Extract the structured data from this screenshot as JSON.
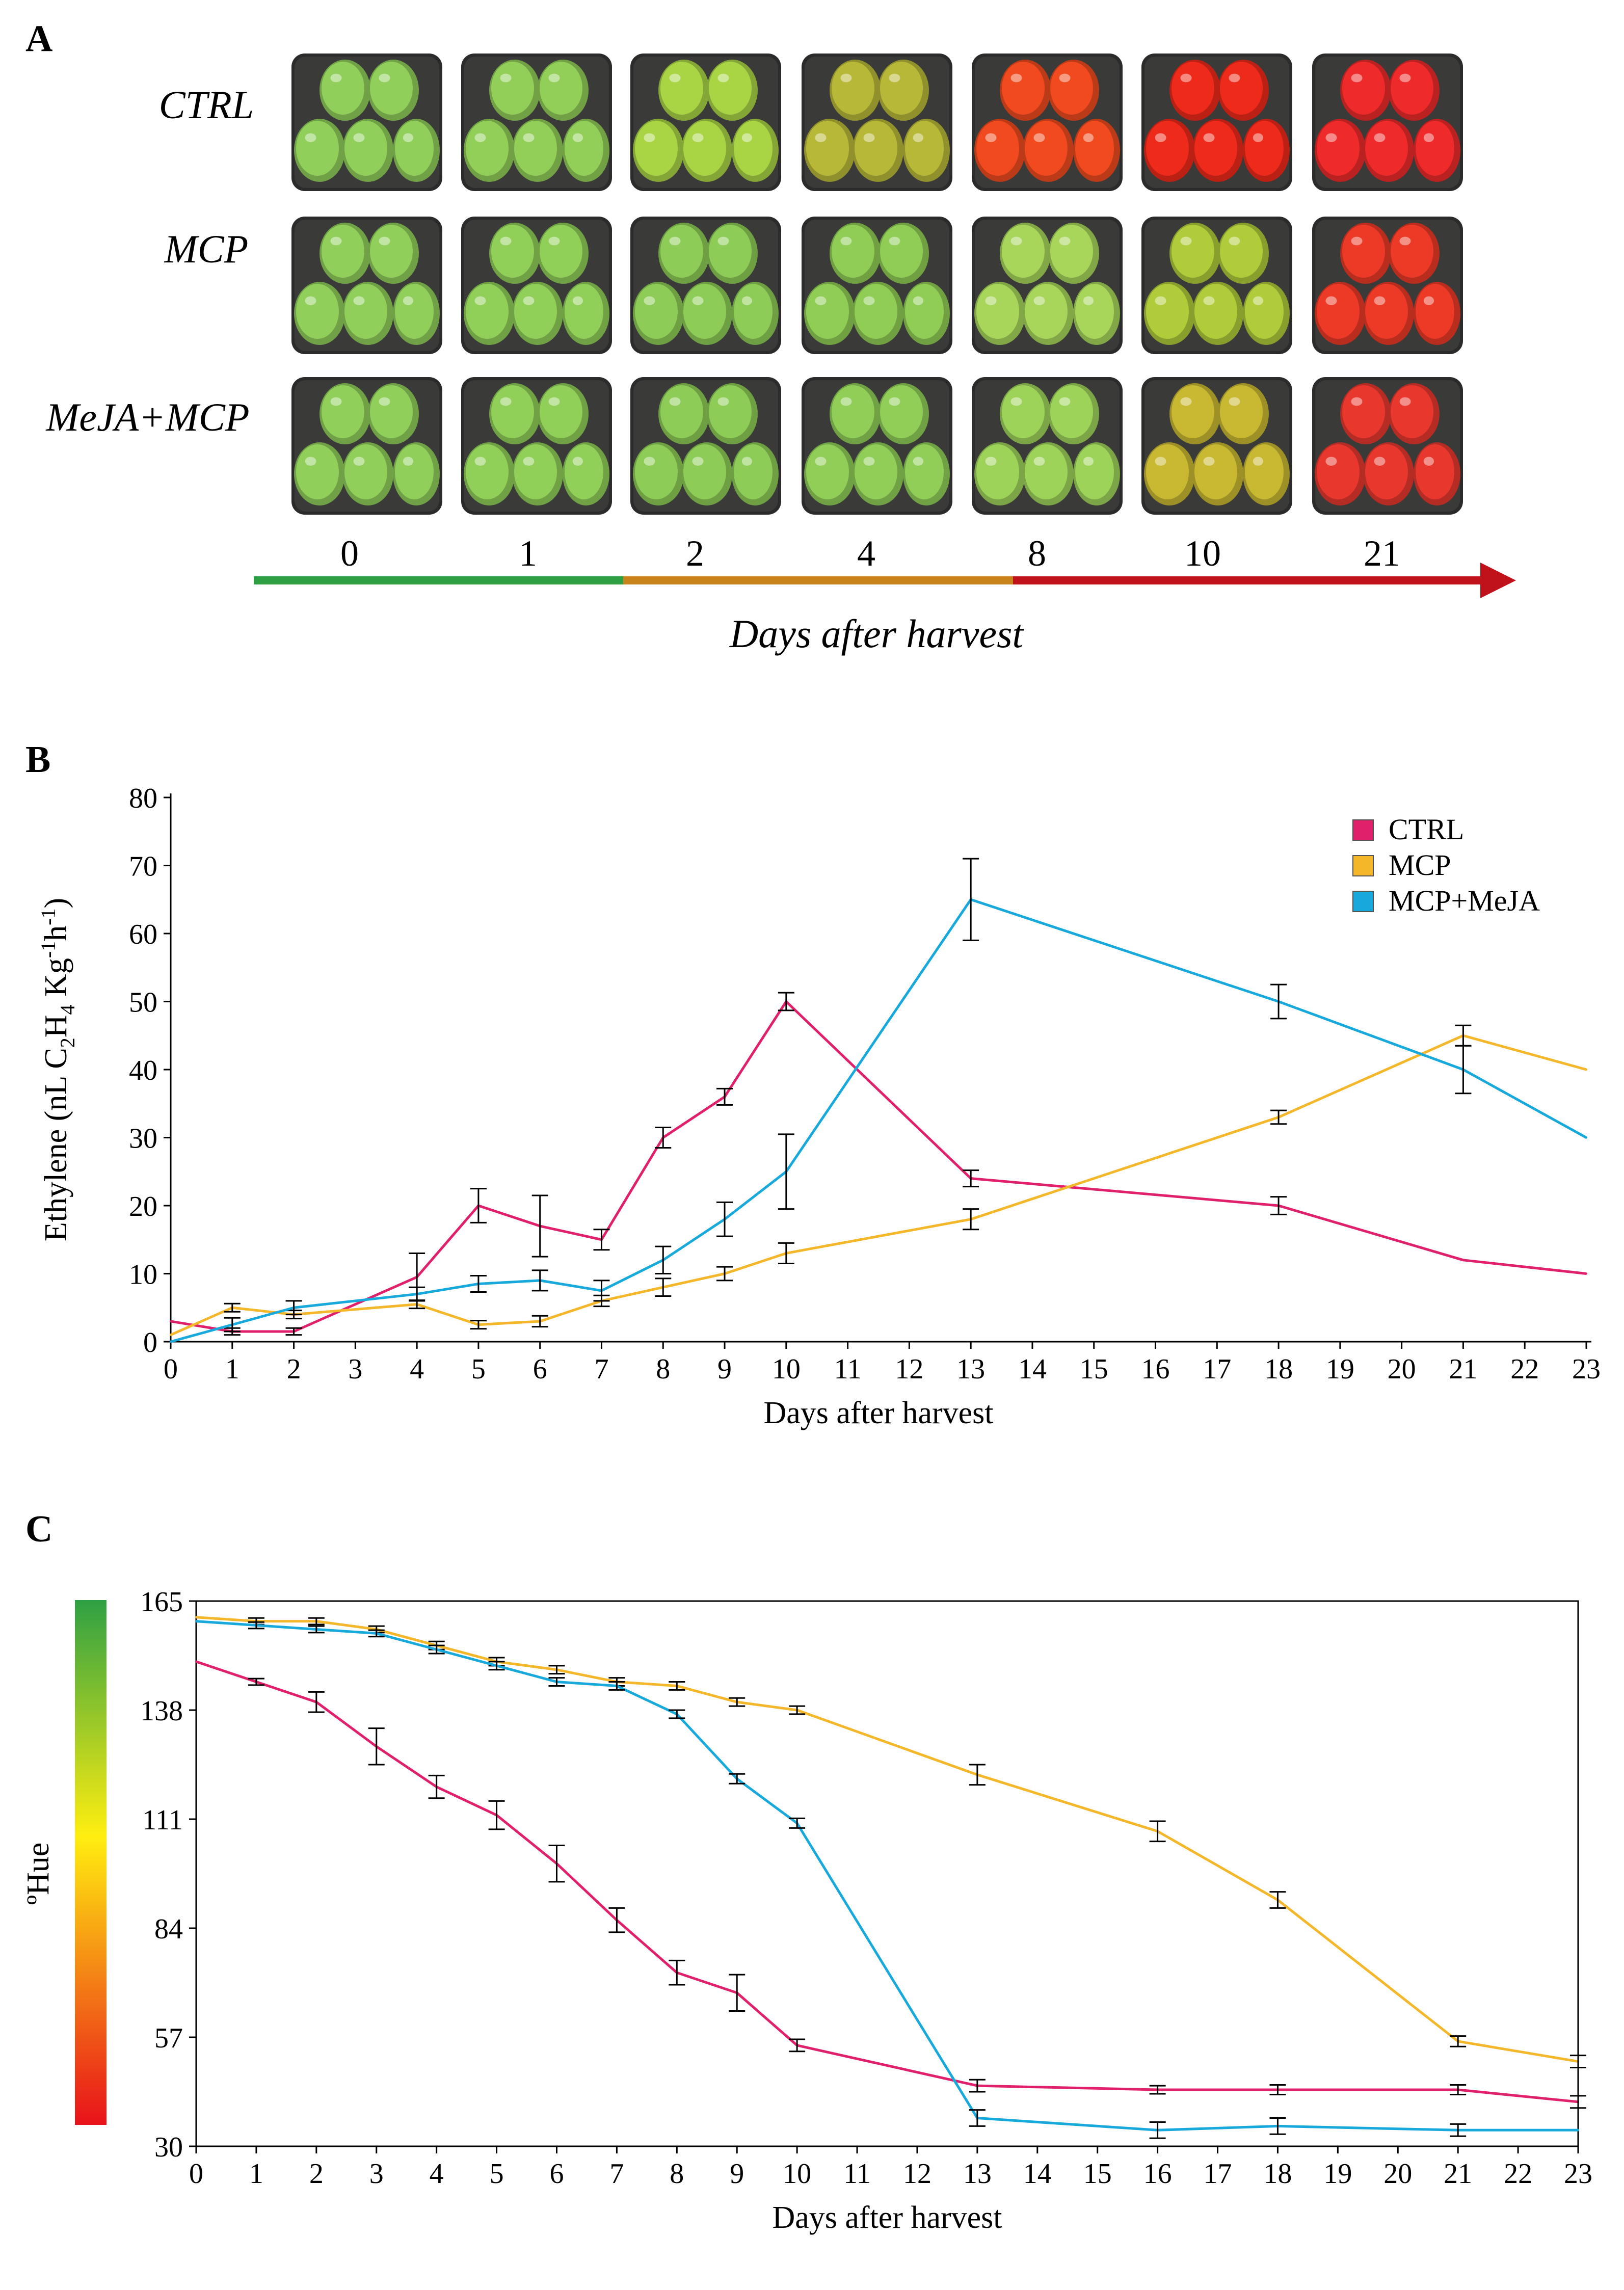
{
  "panels": {
    "a": {
      "letter": "A",
      "row_labels": [
        "CTRL",
        "MCP",
        "MeJA+MCP"
      ],
      "day_labels": [
        "0",
        "1",
        "2",
        "4",
        "8",
        "10",
        "21"
      ],
      "timeline_label": "Days after harvest",
      "timeline_colors": [
        "#2ea043",
        "#c8831a",
        "#c0121a"
      ],
      "fruit_colors": [
        [
          "#8fcf5a",
          "#92cf58",
          "#a9d545",
          "#b8b838",
          "#f04a1e",
          "#ee2a1a",
          "#ee2a2a"
        ],
        [
          "#8fcf5a",
          "#90cf58",
          "#8dcc56",
          "#8fcd55",
          "#a7d65a",
          "#b0cc3a",
          "#ec3a26"
        ],
        [
          "#8fcf5a",
          "#90cf58",
          "#8dcc56",
          "#90ce57",
          "#9ed35a",
          "#c8b832",
          "#e8382e"
        ]
      ]
    },
    "b": {
      "letter": "B"
    },
    "c": {
      "letter": "C"
    }
  },
  "chart_data": [
    {
      "type": "line",
      "ylabel_html": "Ethylene (nL C<sub>2</sub>H<sub>4</sub> Kg<sup>-1</sup>h<sup>-1</sup>)",
      "ylabel": "Ethylene (nL C2H4 Kg-1h-1)",
      "xlabel": "Days after harvest",
      "xlim": [
        0,
        23
      ],
      "ylim": [
        0,
        80
      ],
      "x_ticks": [
        0,
        1,
        2,
        3,
        4,
        5,
        6,
        7,
        8,
        9,
        10,
        11,
        12,
        13,
        14,
        15,
        16,
        17,
        18,
        19,
        20,
        21,
        22,
        23
      ],
      "y_ticks": [
        0,
        10,
        20,
        30,
        40,
        50,
        60,
        70,
        80
      ],
      "grid": false,
      "legend_position": "top-right",
      "series": [
        {
          "name": "CTRL",
          "color": "#e0206a",
          "x": [
            0,
            1,
            2,
            4,
            5,
            6,
            7,
            8,
            9,
            10,
            13,
            18,
            21,
            23
          ],
          "y": [
            3,
            1.5,
            1.5,
            9.5,
            20,
            17,
            15,
            30,
            36,
            50,
            24,
            20,
            12,
            10
          ],
          "err": [
            0,
            0.5,
            0.5,
            3.5,
            2.5,
            4.5,
            1.5,
            1.5,
            1.2,
            1.3,
            1.2,
            1.3,
            0,
            0
          ]
        },
        {
          "name": "MCP",
          "color": "#f5b72a",
          "x": [
            0,
            1,
            2,
            4,
            5,
            6,
            7,
            8,
            9,
            10,
            13,
            18,
            21,
            23
          ],
          "y": [
            1,
            5,
            4,
            5.5,
            2.5,
            3,
            6,
            8,
            10,
            13,
            18,
            33,
            45,
            40
          ],
          "err": [
            0,
            0.6,
            0.6,
            0.6,
            0.6,
            0.8,
            0.8,
            1.3,
            1,
            1.5,
            1.5,
            1,
            1.5,
            0
          ]
        },
        {
          "name": "MCP+MeJA",
          "color": "#17a9dc",
          "x": [
            0,
            1,
            2,
            4,
            5,
            6,
            7,
            8,
            9,
            10,
            13,
            18,
            21,
            23
          ],
          "y": [
            0,
            2.5,
            5,
            7,
            8.5,
            9,
            7.5,
            12,
            18,
            25,
            65,
            50,
            40,
            30
          ],
          "err": [
            0,
            1,
            1,
            1,
            1.2,
            1.5,
            1.5,
            2,
            2.5,
            5.5,
            6,
            2.5,
            3.5,
            0
          ]
        }
      ]
    },
    {
      "type": "line",
      "ylabel": "ºHue",
      "xlabel": "Days after harvest",
      "xlim": [
        0,
        23
      ],
      "ylim": [
        30,
        165
      ],
      "x_ticks": [
        0,
        1,
        2,
        3,
        4,
        5,
        6,
        7,
        8,
        9,
        10,
        11,
        12,
        13,
        14,
        15,
        16,
        17,
        18,
        19,
        20,
        21,
        22,
        23
      ],
      "y_ticks": [
        30,
        57,
        84,
        111,
        138,
        165
      ],
      "grid": false,
      "colorbar": {
        "range": [
          30,
          165
        ],
        "colors": [
          "#e8121a",
          "#ffee10",
          "#2ea043"
        ]
      },
      "series": [
        {
          "name": "CTRL",
          "color": "#e0206a",
          "x": [
            0,
            1,
            2,
            3,
            4,
            5,
            6,
            7,
            8,
            9,
            10,
            13,
            16,
            18,
            21,
            23
          ],
          "y": [
            150,
            145,
            140,
            129,
            119,
            112,
            100,
            86,
            73,
            68,
            55,
            45,
            44,
            44,
            44,
            41
          ],
          "err": [
            0,
            0.8,
            2.5,
            4.5,
            2.8,
            3.5,
            4.5,
            3,
            3,
            4.5,
            1.5,
            1.5,
            1,
            1.2,
            1.2,
            1.5
          ]
        },
        {
          "name": "MCP",
          "color": "#f5b72a",
          "x": [
            0,
            1,
            2,
            3,
            4,
            5,
            6,
            7,
            8,
            9,
            10,
            13,
            16,
            18,
            21,
            23
          ],
          "y": [
            161,
            160,
            160,
            158,
            154,
            150,
            148,
            145,
            144,
            140,
            138,
            122,
            108,
            91,
            56,
            51
          ],
          "err": [
            0,
            0.8,
            0.8,
            0.8,
            1,
            1,
            1,
            1,
            1,
            1,
            1,
            2.5,
            2.5,
            2,
            1.3,
            1.5
          ]
        },
        {
          "name": "MCP+MeJA",
          "color": "#17a9dc",
          "x": [
            0,
            1,
            2,
            3,
            4,
            5,
            6,
            7,
            8,
            9,
            10,
            13,
            16,
            18,
            21,
            23
          ],
          "y": [
            160,
            159,
            158,
            157,
            153,
            149,
            145,
            144,
            137,
            121,
            110,
            37,
            34,
            35,
            34,
            34
          ],
          "err": [
            0,
            0.8,
            0.8,
            0.8,
            1,
            1,
            1,
            1,
            1,
            1.2,
            1.2,
            2,
            2,
            2,
            1.5,
            0
          ]
        }
      ]
    }
  ]
}
